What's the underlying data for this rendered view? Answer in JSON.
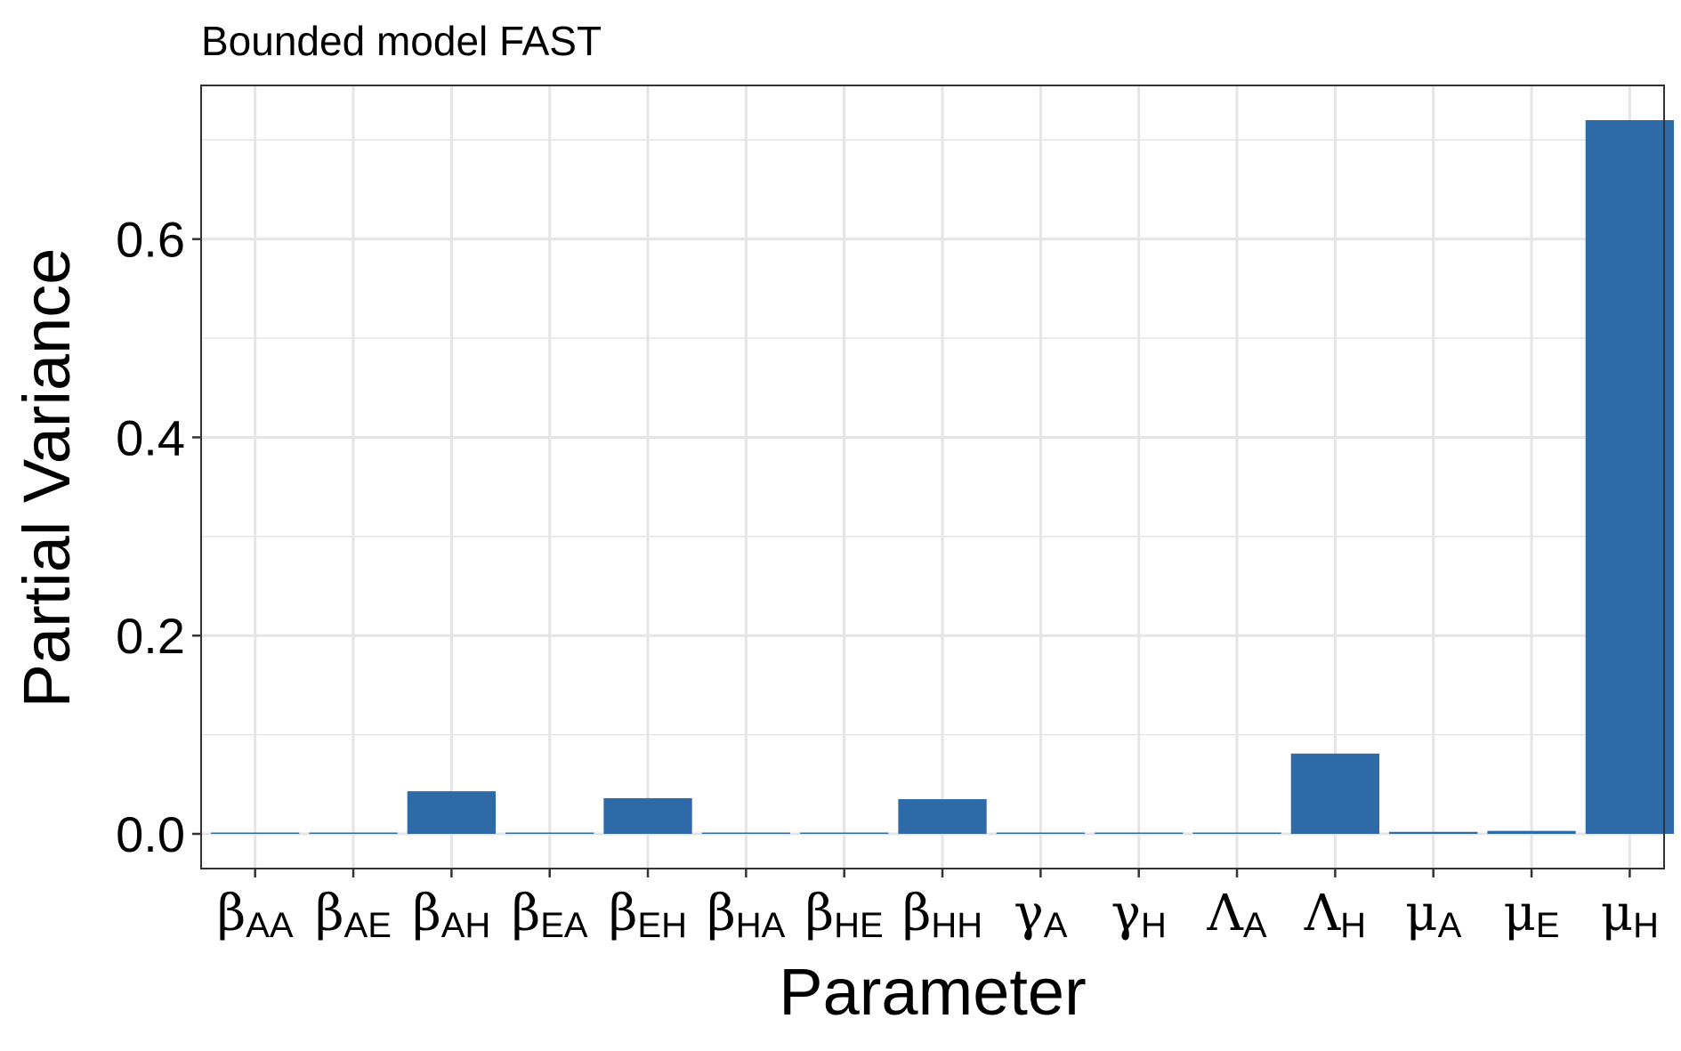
{
  "chart_data": {
    "type": "bar",
    "title": "Bounded model FAST",
    "xlabel": "Parameter",
    "ylabel": "Partial Variance",
    "categories": [
      {
        "symbol": "β",
        "subscript": "AA"
      },
      {
        "symbol": "β",
        "subscript": "AE"
      },
      {
        "symbol": "β",
        "subscript": "AH"
      },
      {
        "symbol": "β",
        "subscript": "EA"
      },
      {
        "symbol": "β",
        "subscript": "EH"
      },
      {
        "symbol": "β",
        "subscript": "HA"
      },
      {
        "symbol": "β",
        "subscript": "HE"
      },
      {
        "symbol": "β",
        "subscript": "HH"
      },
      {
        "symbol": "γ",
        "subscript": "A"
      },
      {
        "symbol": "γ",
        "subscript": "H"
      },
      {
        "symbol": "Λ",
        "subscript": "A"
      },
      {
        "symbol": "Λ",
        "subscript": "H"
      },
      {
        "symbol": "μ",
        "subscript": "A"
      },
      {
        "symbol": "μ",
        "subscript": "E"
      },
      {
        "symbol": "μ",
        "subscript": "H"
      }
    ],
    "values": [
      0.0005,
      0.0005,
      0.043,
      0.0002,
      0.036,
      0.0003,
      0.0005,
      0.035,
      0.001,
      0.0002,
      0.0008,
      0.081,
      0.002,
      0.003,
      0.72
    ],
    "yticks": [
      0.0,
      0.2,
      0.4,
      0.6
    ],
    "ytick_labels": [
      "0.0",
      "0.2",
      "0.4",
      "0.6"
    ],
    "ylim": [
      -0.035,
      0.755
    ],
    "grid": true,
    "legend": "none",
    "colors": {
      "bar": "#2E69A8",
      "grid": "#E5E5E5",
      "panel_border": "#333333",
      "background": "#FFFFFF"
    }
  }
}
